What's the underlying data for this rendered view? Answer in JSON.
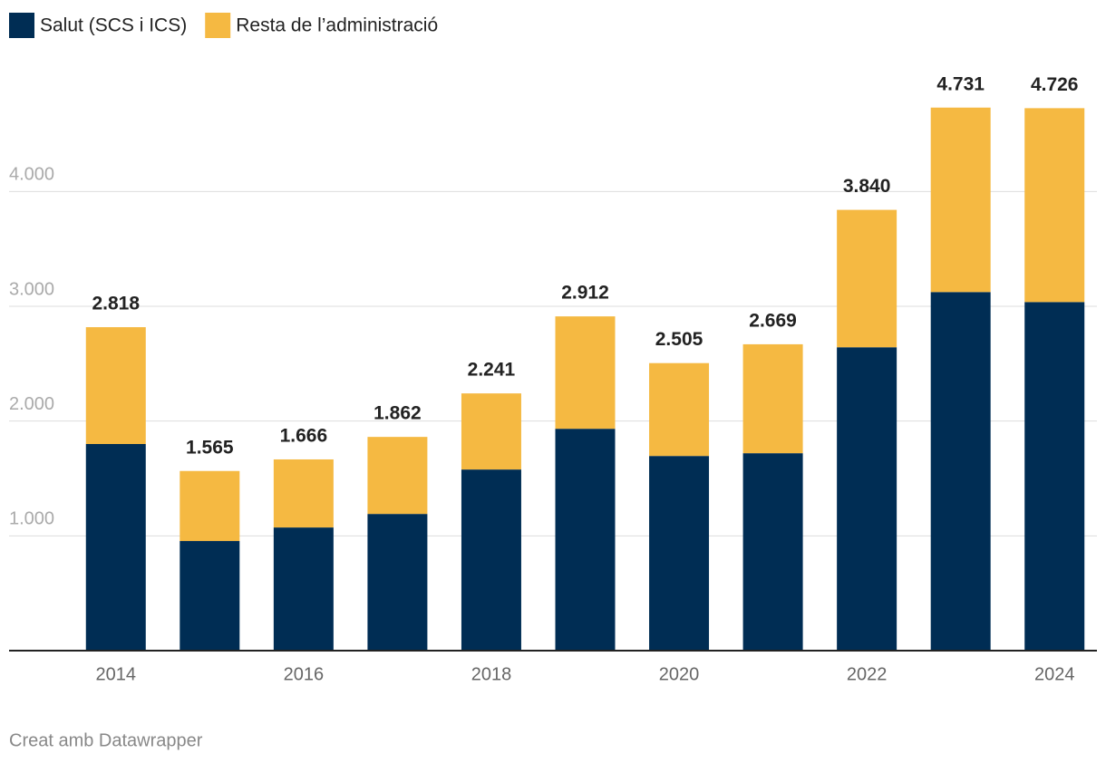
{
  "chart_data": {
    "type": "stacked-bar",
    "categories": [
      "2014",
      null,
      "2016",
      null,
      "2018",
      null,
      "2020",
      null,
      "2022",
      null,
      "2024"
    ],
    "series": [
      {
        "name": "Salut (SCS i ICS)",
        "color": "#002d54",
        "values": [
          1800,
          955,
          1073,
          1191,
          1578,
          1933,
          1696,
          1720,
          2643,
          3124,
          3037
        ]
      },
      {
        "name": "Resta de l’administració",
        "color": "#f5b942",
        "values": [
          1018,
          610,
          593,
          671,
          663,
          979,
          809,
          949,
          1197,
          1607,
          1689
        ]
      }
    ],
    "totals": {
      "values": [
        2818,
        1565,
        1666,
        1862,
        2241,
        2912,
        2505,
        2669,
        3840,
        4731,
        4726
      ],
      "value_labels": [
        "2.818",
        "1.565",
        "1.666",
        "1.862",
        "2.241",
        "2.912",
        "2.505",
        "2.669",
        "3.840",
        "4.731",
        "4.726"
      ]
    },
    "ylim": [
      0,
      4800
    ],
    "yticks": [
      {
        "value": 1000,
        "label": "1.000"
      },
      {
        "value": 2000,
        "label": "2.000"
      },
      {
        "value": 3000,
        "label": "3.000"
      },
      {
        "value": 4000,
        "label": "4.000"
      }
    ],
    "grid": true,
    "footer": "Creat amb Datawrapper"
  }
}
